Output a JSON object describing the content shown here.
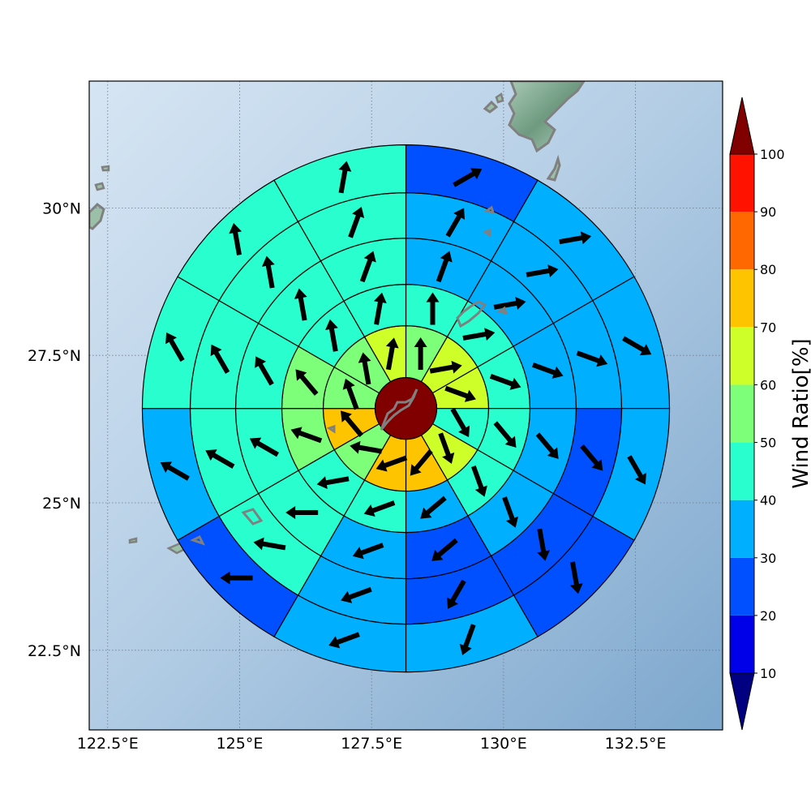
{
  "map": {
    "lon_range": [
      122.15,
      134.15
    ],
    "lat_range": [
      21.15,
      32.15
    ],
    "lon_ticks": [
      {
        "value": 122.5,
        "label": "122.5°E"
      },
      {
        "value": 125.0,
        "label": "125°E"
      },
      {
        "value": 127.5,
        "label": "127.5°E"
      },
      {
        "value": 130.0,
        "label": "130°E"
      },
      {
        "value": 132.5,
        "label": "132.5°E"
      }
    ],
    "lat_ticks": [
      {
        "value": 22.5,
        "label": "22.5°N"
      },
      {
        "value": 25.0,
        "label": "25°N"
      },
      {
        "value": 27.5,
        "label": "27.5°N"
      },
      {
        "value": 30.0,
        "label": "30°N"
      }
    ],
    "grid": true,
    "ocean_color": "#8fb3d6",
    "coastline_color": "#808080"
  },
  "polar_grid": {
    "center": {
      "lon": 128.15,
      "lat": 26.6
    },
    "sectors_per_ring": 12,
    "center_disk_value": 100,
    "ring_values": [
      [
        55,
        65,
        65,
        45,
        65,
        75,
        75,
        55,
        75,
        55,
        55,
        65
      ],
      [
        45,
        45,
        45,
        45,
        45,
        35,
        45,
        45,
        55,
        55,
        45,
        45
      ],
      [
        35,
        35,
        35,
        35,
        35,
        25,
        35,
        45,
        45,
        45,
        45,
        45
      ],
      [
        35,
        35,
        35,
        25,
        25,
        25,
        35,
        45,
        45,
        45,
        45,
        45
      ],
      [
        25,
        35,
        35,
        35,
        25,
        35,
        35,
        25,
        35,
        45,
        45,
        45
      ]
    ],
    "ring_arrow_directions_deg": [
      [
        0,
        80,
        110,
        150,
        160,
        220,
        250,
        280,
        320,
        340,
        350,
        10
      ],
      [
        0,
        80,
        110,
        140,
        160,
        230,
        250,
        260,
        290,
        320,
        350,
        10
      ],
      [
        20,
        80,
        110,
        140,
        160,
        230,
        250,
        270,
        300,
        330,
        350,
        20
      ],
      [
        30,
        80,
        110,
        140,
        170,
        210,
        250,
        280,
        300,
        330,
        350,
        20
      ],
      [
        60,
        80,
        120,
        150,
        170,
        200,
        250,
        270,
        300,
        330,
        350,
        10
      ]
    ]
  },
  "colorbar": {
    "label": "Wind Ratio[%]",
    "tick_values": [
      10,
      20,
      30,
      40,
      50,
      60,
      70,
      80,
      90,
      100
    ],
    "tick_labels": [
      "10",
      "20",
      "30",
      "40",
      "50",
      "60",
      "70",
      "80",
      "90",
      "100"
    ],
    "bins": [
      {
        "from": 10,
        "to": 20,
        "color": "#0000e8"
      },
      {
        "from": 20,
        "to": 30,
        "color": "#0050ff"
      },
      {
        "from": 30,
        "to": 40,
        "color": "#00b0ff"
      },
      {
        "from": 40,
        "to": 50,
        "color": "#29ffce"
      },
      {
        "from": 50,
        "to": 60,
        "color": "#7dff7a"
      },
      {
        "from": 60,
        "to": 70,
        "color": "#ceff29"
      },
      {
        "from": 70,
        "to": 80,
        "color": "#ffc400"
      },
      {
        "from": 80,
        "to": 90,
        "color": "#ff6800"
      },
      {
        "from": 90,
        "to": 100,
        "color": "#ff1300"
      }
    ],
    "under_color": "#000080",
    "over_color": "#800000"
  }
}
